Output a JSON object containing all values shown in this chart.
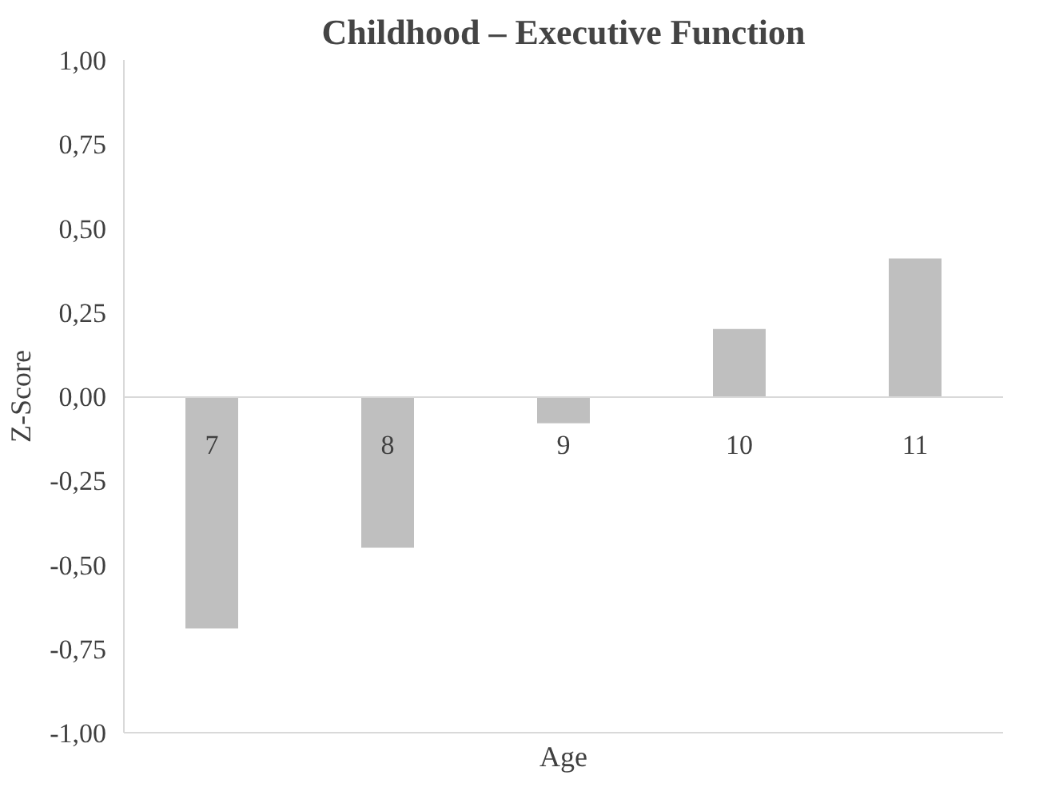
{
  "chart_data": {
    "type": "bar",
    "title": "Childhood – Executive Function",
    "xlabel": "Age",
    "ylabel": "Z-Score",
    "categories": [
      "7",
      "8",
      "9",
      "10",
      "11"
    ],
    "values": [
      -0.69,
      -0.45,
      -0.08,
      0.2,
      0.41
    ],
    "color": "#bfbfbf",
    "ylim": [
      -1.0,
      1.0
    ],
    "yticks": [
      {
        "value": -1.0,
        "label": "-1,00"
      },
      {
        "value": -0.75,
        "label": "-0,75"
      },
      {
        "value": -0.5,
        "label": "-0,50"
      },
      {
        "value": -0.25,
        "label": "-0,25"
      },
      {
        "value": 0.0,
        "label": "0,00"
      },
      {
        "value": 0.25,
        "label": "0,25"
      },
      {
        "value": 0.5,
        "label": "0,50"
      },
      {
        "value": 0.75,
        "label": "0,75"
      },
      {
        "value": 1.0,
        "label": "1,00"
      }
    ],
    "grid": false
  }
}
